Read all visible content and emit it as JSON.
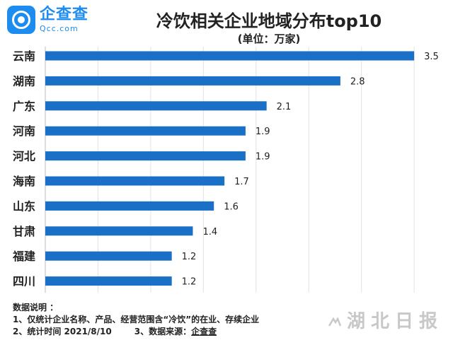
{
  "logo": {
    "name_cn": "企查查",
    "name_en": "Qcc.com"
  },
  "chart_data": {
    "type": "bar",
    "orientation": "horizontal",
    "title": "冷饮相关企业地域分布top10",
    "subtitle": "(单位：万家)",
    "categories": [
      "云南",
      "湖南",
      "广东",
      "河南",
      "河北",
      "海南",
      "山东",
      "甘肃",
      "福建",
      "四川"
    ],
    "values": [
      3.5,
      2.8,
      2.1,
      1.9,
      1.9,
      1.7,
      1.6,
      1.4,
      1.2,
      1.2
    ],
    "value_labels": [
      "3.5",
      "2.8",
      "2.1",
      "1.9",
      "1.9",
      "1.7",
      "1.6",
      "1.4",
      "1.2",
      "1.2"
    ],
    "xlim": [
      0,
      3.6
    ],
    "grid": "vertical",
    "bar_color": "#1a6fc6"
  },
  "notes": {
    "heading": "数据说明 ：",
    "line1": "1、仅统计企业名称、产品、经营范围含“冷饮”的在业、存续企业",
    "line2": "2、统计时间  2021/8/10",
    "line3_label": "3、数据来源：",
    "line3_source": "企查查"
  },
  "watermark": {
    "text": "湖北日报",
    "icon": "hubei-daily-logo-icon"
  }
}
